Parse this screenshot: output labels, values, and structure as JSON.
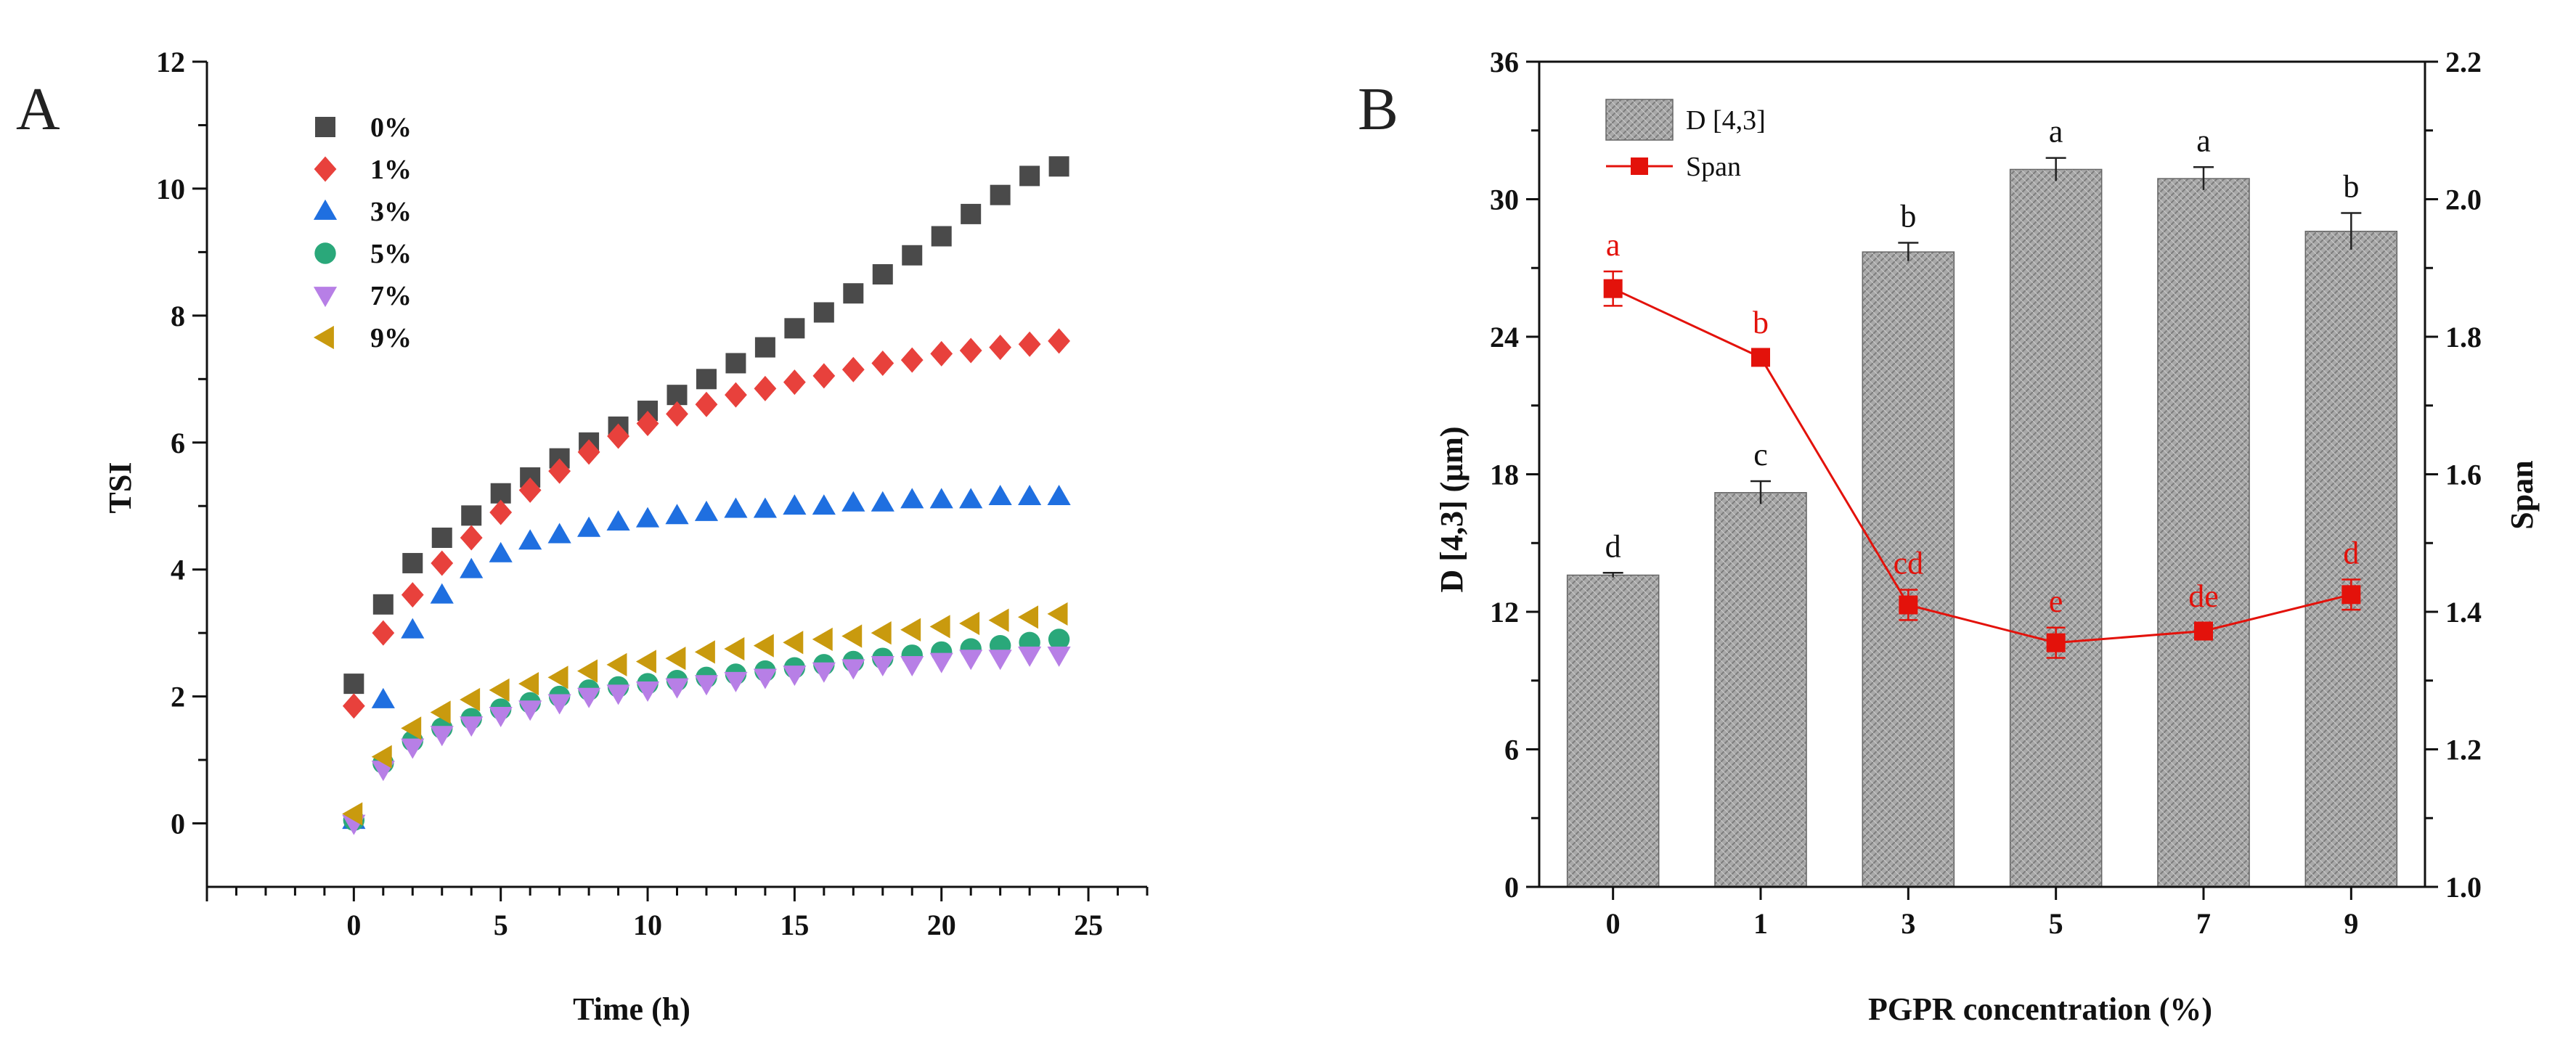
{
  "chart_data": [
    {
      "panel": "A",
      "type": "scatter",
      "xlabel": "Time (h)",
      "ylabel": "TSI",
      "xlim": [
        -5,
        27
      ],
      "ylim": [
        -1,
        12
      ],
      "xticks": [
        0,
        5,
        10,
        15,
        20,
        25
      ],
      "yticks": [
        0,
        2,
        4,
        6,
        8,
        10,
        12
      ],
      "legend_position": "top-left",
      "x": [
        0,
        1,
        2,
        3,
        4,
        5,
        6,
        7,
        8,
        9,
        10,
        11,
        12,
        13,
        14,
        15,
        16,
        17,
        18,
        19,
        20,
        21,
        22,
        23,
        24
      ],
      "series": [
        {
          "name": "0%",
          "marker": "square",
          "color": "#4a4a4a",
          "values": [
            2.2,
            3.45,
            4.1,
            4.5,
            4.85,
            5.2,
            5.45,
            5.75,
            6.0,
            6.25,
            6.5,
            6.75,
            7.0,
            7.25,
            7.5,
            7.8,
            8.05,
            8.35,
            8.65,
            8.95,
            9.25,
            9.6,
            9.9,
            10.2,
            10.35
          ]
        },
        {
          "name": "1%",
          "marker": "diamond",
          "color": "#e8413c",
          "values": [
            1.85,
            3.0,
            3.6,
            4.1,
            4.5,
            4.9,
            5.25,
            5.55,
            5.85,
            6.1,
            6.3,
            6.45,
            6.6,
            6.75,
            6.85,
            6.95,
            7.05,
            7.15,
            7.25,
            7.3,
            7.4,
            7.45,
            7.5,
            7.55,
            7.6
          ]
        },
        {
          "name": "3%",
          "marker": "triangle-up",
          "color": "#1f6fe0",
          "values": [
            0.05,
            1.95,
            3.05,
            3.6,
            4.0,
            4.25,
            4.45,
            4.55,
            4.65,
            4.75,
            4.8,
            4.85,
            4.9,
            4.95,
            4.95,
            5.0,
            5.0,
            5.05,
            5.05,
            5.1,
            5.1,
            5.1,
            5.15,
            5.15,
            5.15
          ]
        },
        {
          "name": "5%",
          "marker": "circle",
          "color": "#2aa87a",
          "values": [
            0.05,
            0.95,
            1.3,
            1.5,
            1.65,
            1.8,
            1.9,
            2.0,
            2.1,
            2.15,
            2.2,
            2.25,
            2.3,
            2.35,
            2.4,
            2.45,
            2.5,
            2.55,
            2.6,
            2.65,
            2.7,
            2.75,
            2.8,
            2.85,
            2.9
          ]
        },
        {
          "name": "7%",
          "marker": "triangle-down",
          "color": "#b77fe6",
          "values": [
            0.0,
            0.85,
            1.2,
            1.4,
            1.55,
            1.7,
            1.8,
            1.9,
            2.0,
            2.05,
            2.1,
            2.15,
            2.2,
            2.25,
            2.3,
            2.35,
            2.4,
            2.45,
            2.5,
            2.5,
            2.55,
            2.6,
            2.6,
            2.65,
            2.65
          ]
        },
        {
          "name": "9%",
          "marker": "triangle-left",
          "color": "#c99a0e",
          "values": [
            0.15,
            1.05,
            1.5,
            1.75,
            1.95,
            2.1,
            2.2,
            2.3,
            2.4,
            2.5,
            2.55,
            2.6,
            2.7,
            2.75,
            2.8,
            2.85,
            2.9,
            2.95,
            3.0,
            3.05,
            3.1,
            3.15,
            3.2,
            3.25,
            3.3
          ]
        }
      ]
    },
    {
      "panel": "B",
      "type": "bar",
      "xlabel": "PGPR concentration (%)",
      "ylabel": "D [4,3] (μm)",
      "y2label": "Span",
      "categories": [
        "0",
        "1",
        "3",
        "5",
        "7",
        "9"
      ],
      "ylim": [
        0,
        36
      ],
      "yticks": [
        0,
        6,
        12,
        18,
        24,
        30,
        36
      ],
      "y2lim": [
        1.0,
        2.2
      ],
      "y2ticks": [
        "1.0",
        "1.2",
        "1.4",
        "1.6",
        "1.8",
        "2.0",
        "2.2"
      ],
      "legend_position": "top-left",
      "series": [
        {
          "name": "D [4,3]",
          "kind": "bar",
          "axis": "left",
          "color": "#9a9a9a",
          "values": [
            13.6,
            17.2,
            27.7,
            31.3,
            30.9,
            28.6
          ],
          "errors": [
            0.1,
            0.5,
            0.4,
            0.5,
            0.5,
            0.8
          ],
          "labels": [
            "d",
            "c",
            "b",
            "a",
            "a",
            "b"
          ]
        },
        {
          "name": "Span",
          "kind": "line",
          "axis": "right",
          "color": "#e3120b",
          "values": [
            1.87,
            1.77,
            1.41,
            1.355,
            1.372,
            1.425
          ],
          "errors": [
            0.025,
            0.012,
            0.022,
            0.022,
            0.012,
            0.022
          ],
          "labels": [
            "a",
            "b",
            "cd",
            "e",
            "de",
            "d"
          ]
        }
      ]
    }
  ],
  "colors": {
    "axis": "#111111",
    "bar_fill": "#9a9a9a",
    "span_line": "#e3120b"
  }
}
